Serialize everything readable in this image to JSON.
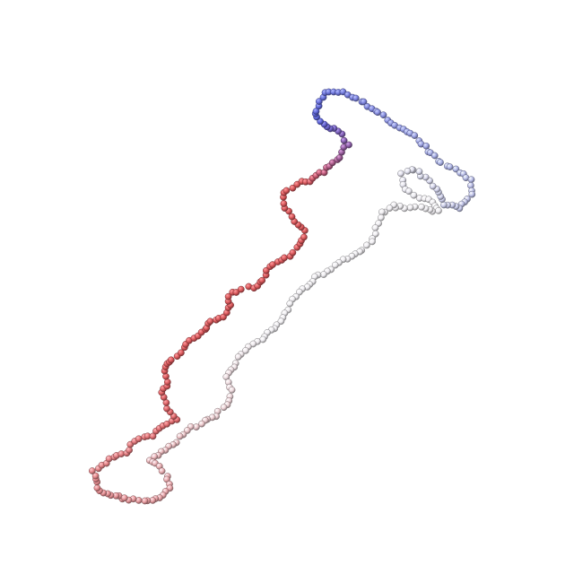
{
  "scene": {
    "background": "#ffffff",
    "subject": "polymer-chain",
    "bead_style": "shaded-sphere",
    "gradient": {
      "start": "#e8969a",
      "red": "#d9575a",
      "mid": "#f0eef2",
      "blue": "#5b63d8",
      "end": "#aab0e4"
    }
  }
}
